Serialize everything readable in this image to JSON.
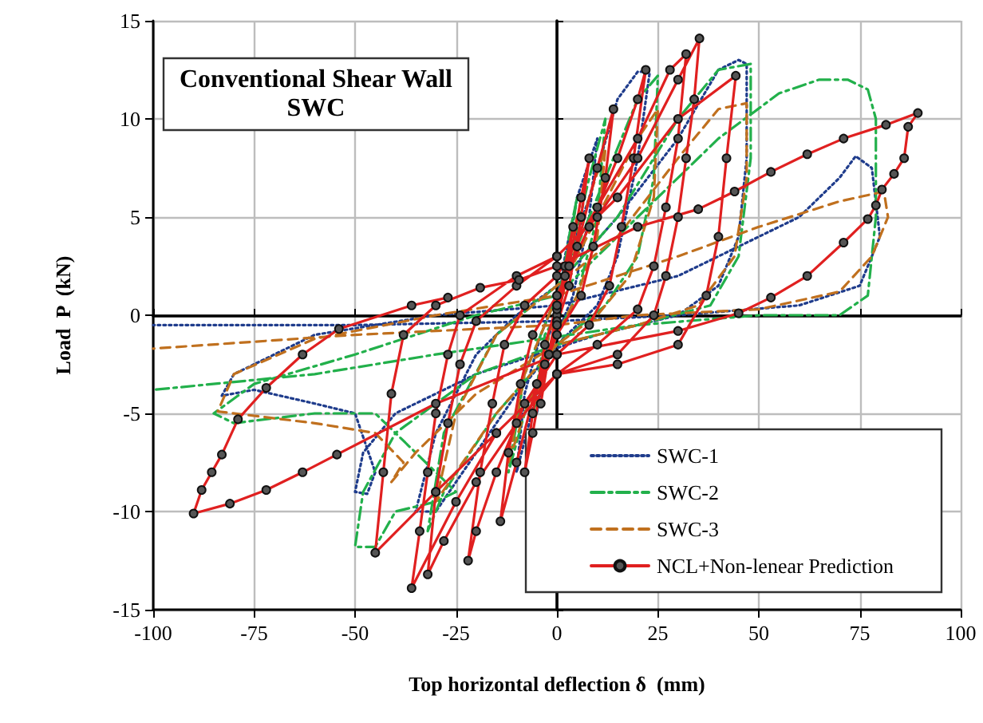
{
  "chart_data": {
    "type": "line",
    "title": "Conventional Shear Wall",
    "subtitle": "SWC",
    "xlabel": "Top horizontal deflection δ  (mm)",
    "ylabel": "Load  P  (kN)",
    "xlim": [
      -100,
      100
    ],
    "xticks": [
      -100,
      -75,
      -50,
      -25,
      0,
      25,
      50,
      75,
      100
    ],
    "ylim": [
      -15,
      15
    ],
    "yticks": [
      -15,
      -10,
      -5,
      0,
      5,
      10,
      15
    ],
    "grid": true,
    "legend": "bottom right",
    "series": [
      {
        "name": "SWC-1",
        "color": "#1f3c8c",
        "line_style": "dotted",
        "marker": "none",
        "x": [
          0,
          2,
          4,
          2,
          0,
          -3,
          -5,
          -2,
          0,
          5,
          10,
          8,
          4,
          0,
          -5,
          -10,
          -8,
          -4,
          0,
          8,
          15,
          20,
          23,
          20,
          15,
          10,
          0,
          -10,
          -20,
          -30,
          -35,
          -30,
          -20,
          -10,
          0,
          15,
          30,
          40,
          45,
          47,
          47,
          45,
          40,
          30,
          10,
          -20,
          -40,
          -48,
          -50,
          -47,
          -45,
          -50,
          -60,
          -75,
          -83,
          -80,
          -60,
          -30,
          0,
          30,
          50,
          60,
          70,
          74,
          78,
          80,
          75,
          60,
          30,
          0,
          -50,
          -100
        ],
        "values": [
          0,
          3,
          5,
          2,
          0,
          -3,
          -5,
          -1,
          0,
          6,
          9,
          5,
          1,
          -1,
          -4,
          -8,
          -4,
          -1,
          1,
          6,
          11,
          12.4,
          12.4,
          8,
          3,
          0.5,
          -1.5,
          -4,
          -7,
          -10,
          -10,
          -6,
          -2,
          0,
          1.5,
          5,
          9,
          12.5,
          13,
          12.8,
          8,
          4,
          1.5,
          0,
          -1,
          -3,
          -5,
          -7,
          -9,
          -9.1,
          -8,
          -5,
          -4.5,
          -3.8,
          -4.1,
          -3,
          -1,
          0,
          0.5,
          2,
          4,
          5,
          7,
          8.1,
          7.5,
          4,
          1.5,
          0.5,
          0,
          -0.3,
          -0.5,
          -0.5
        ]
      },
      {
        "name": "SWC-2",
        "color": "#22b04b",
        "line_style": "dashdot",
        "marker": "none",
        "x": [
          0,
          3,
          5,
          2,
          0,
          -3,
          -6,
          -3,
          0,
          8,
          12,
          10,
          5,
          0,
          -8,
          -12,
          -8,
          0,
          10,
          20,
          25,
          24,
          20,
          12,
          0,
          -15,
          -28,
          -32,
          -28,
          -15,
          0,
          15,
          30,
          40,
          48,
          48,
          45,
          38,
          20,
          0,
          -20,
          -40,
          -48,
          -50,
          -45,
          -40,
          -30,
          -25,
          -45,
          -60,
          -80,
          -85,
          -75,
          -50,
          -20,
          0,
          20,
          40,
          55,
          65,
          72,
          77,
          79,
          79,
          77,
          70,
          50,
          20,
          -30,
          -60,
          -100
        ],
        "values": [
          0,
          4,
          6,
          2,
          0,
          -3,
          -5,
          -1,
          0,
          7,
          10,
          5,
          1,
          -1,
          -5,
          -8,
          -3,
          1,
          6,
          11,
          12.2,
          7,
          3,
          0.5,
          -1.5,
          -5,
          -9,
          -11,
          -6,
          -1,
          1.5,
          5,
          10,
          12.5,
          12.8,
          8,
          3,
          0.5,
          -0.5,
          -1.5,
          -3,
          -6,
          -9,
          -11.8,
          -11.8,
          -10,
          -9.5,
          -9,
          -5,
          -5,
          -5.5,
          -5,
          -3.5,
          -2,
          0,
          1,
          5,
          9,
          11.3,
          12,
          12,
          11.5,
          10,
          5,
          1,
          0,
          0,
          -0.5,
          -2,
          -3,
          -3.8
        ]
      },
      {
        "name": "SWC-3",
        "color": "#c0701e",
        "line_style": "dashed",
        "marker": "none",
        "x": [
          0,
          3,
          5,
          2,
          0,
          -3,
          -5,
          -2,
          0,
          8,
          12,
          10,
          5,
          0,
          -8,
          -12,
          -8,
          0,
          10,
          20,
          25,
          24,
          18,
          10,
          0,
          -15,
          -25,
          -30,
          -25,
          -15,
          0,
          15,
          30,
          40,
          47,
          47,
          44,
          35,
          20,
          0,
          -20,
          -35,
          -41,
          -38,
          -45,
          -60,
          -84,
          -80,
          -60,
          -30,
          0,
          30,
          50,
          70,
          81,
          82,
          78,
          70,
          50,
          20,
          0,
          -50,
          -100
        ],
        "values": [
          0,
          3.5,
          5,
          1.5,
          0,
          -3,
          -4.5,
          -1,
          0,
          6,
          8.5,
          4,
          1,
          -1,
          -5,
          -7.5,
          -3,
          1,
          5,
          9,
          10.5,
          6,
          2,
          0,
          -1.5,
          -5,
          -8,
          -9.5,
          -5,
          -1,
          1.5,
          4,
          8,
          10.5,
          10.8,
          7,
          3,
          0.5,
          -0.5,
          -1.5,
          -4,
          -7,
          -8.5,
          -7.5,
          -6,
          -5.5,
          -4.9,
          -3,
          -1.2,
          0,
          1,
          3,
          4.5,
          5.8,
          6.3,
          5,
          3,
          1.2,
          0.3,
          0,
          -0.5,
          -1,
          -1.7
        ]
      },
      {
        "name": "NCL+Non-lenear Prediction",
        "color": "#e02020",
        "line_style": "solid",
        "marker": "circle",
        "x": [
          0,
          2,
          4,
          2,
          0,
          -2,
          -4,
          -2,
          0,
          3,
          6,
          8,
          6,
          3,
          0,
          -3,
          -6,
          -8,
          -6,
          -3,
          0,
          5,
          10,
          14,
          12,
          9,
          6,
          0,
          -5,
          -10,
          -14,
          -12,
          -9,
          -6,
          0,
          8,
          15,
          20,
          22,
          19,
          16,
          13,
          8,
          0,
          -8,
          -15,
          -20,
          -22,
          -19,
          -16,
          -13,
          -8,
          0,
          10,
          20,
          28,
          32,
          30,
          27,
          24,
          20,
          10,
          0,
          -10,
          -20,
          -28,
          -32,
          -30,
          -27,
          -24,
          -20,
          -10,
          0,
          10,
          20,
          30,
          35.3,
          34,
          32,
          30,
          27,
          24,
          15,
          0,
          -15,
          -25,
          -36,
          -34,
          -32,
          -30,
          -27,
          -24,
          -10,
          0,
          15,
          30,
          44.3,
          42,
          40,
          37,
          30,
          15,
          0,
          -15,
          -30,
          -45,
          -43,
          -41,
          -38,
          -30,
          -19,
          -9.4,
          0,
          20,
          35,
          44,
          53,
          62,
          71,
          81.5,
          89.4,
          87,
          86,
          83.5,
          80.5,
          79,
          77,
          71,
          62,
          53,
          45,
          30,
          0,
          -30,
          -54.5,
          -63,
          -72,
          -81,
          -90,
          -88,
          -85.5,
          -83,
          -79,
          -72,
          -63,
          -54,
          -36,
          -27
        ],
        "values": [
          0,
          2.5,
          4.5,
          2,
          0.3,
          -2,
          -4.5,
          -2,
          -0.3,
          2.5,
          6,
          8,
          5,
          1.5,
          -0.5,
          -2.5,
          -6,
          -8,
          -5,
          -1.5,
          0.5,
          3.5,
          7.5,
          10.5,
          7,
          3.5,
          1,
          -1,
          -3.5,
          -7.5,
          -10.5,
          -7,
          -3.5,
          -1,
          1,
          4.5,
          8,
          11,
          12.5,
          8,
          4.5,
          1.5,
          -0.5,
          -2,
          -4.5,
          -8,
          -11,
          -12.5,
          -8,
          -4.5,
          -1.5,
          0.5,
          2,
          5.5,
          9,
          12.5,
          13.3,
          9,
          5.5,
          2.5,
          0.3,
          -1.5,
          -3,
          -5.5,
          -8.5,
          -11.5,
          -13.2,
          -9,
          -5.5,
          -2.5,
          -0.3,
          1.5,
          3,
          5,
          8,
          12,
          14.1,
          11,
          8,
          5,
          2,
          0,
          -2,
          -3,
          -6,
          -9.5,
          -13.9,
          -11,
          -8,
          -5,
          -2,
          0,
          2,
          3,
          6,
          10,
          12.2,
          8,
          4,
          1,
          -1.5,
          -2.5,
          -3,
          -6,
          -9,
          -12.1,
          -8,
          -4,
          -1,
          0.5,
          1.4,
          1.8,
          2.5,
          4.5,
          5.4,
          6.3,
          7.3,
          8.2,
          9,
          9.7,
          10.3,
          9.6,
          8,
          7.2,
          6.4,
          5.6,
          4.9,
          3.7,
          2,
          0.9,
          0.1,
          -0.8,
          -2,
          -4.5,
          -7.1,
          -8,
          -8.9,
          -9.6,
          -10.1,
          -8.9,
          -8,
          -7.1,
          -5.3,
          -3.7,
          -2,
          -0.7,
          0.5,
          0.9
        ]
      }
    ]
  }
}
